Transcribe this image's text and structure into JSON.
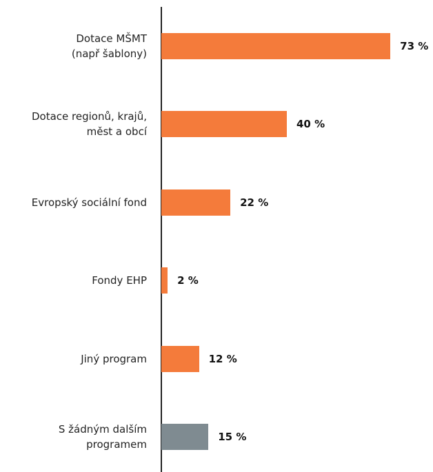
{
  "chart_data": {
    "type": "barh",
    "categories": [
      "Dotace MŠMT\n(např šablony)",
      "Dotace regionů, krajů,\nměst a obcí",
      "Evropský sociální fond",
      "Fondy EHP",
      "Jiný program",
      "S žádným dalším\nprogramem"
    ],
    "values": [
      73,
      40,
      22,
      2,
      12,
      15
    ],
    "value_labels": [
      "73 %",
      "40 %",
      "22 %",
      "2 %",
      "12 %",
      "15 %"
    ],
    "colors": [
      "#f47b3b",
      "#f47b3b",
      "#f47b3b",
      "#f47b3b",
      "#f47b3b",
      "#7f8b91"
    ]
  }
}
